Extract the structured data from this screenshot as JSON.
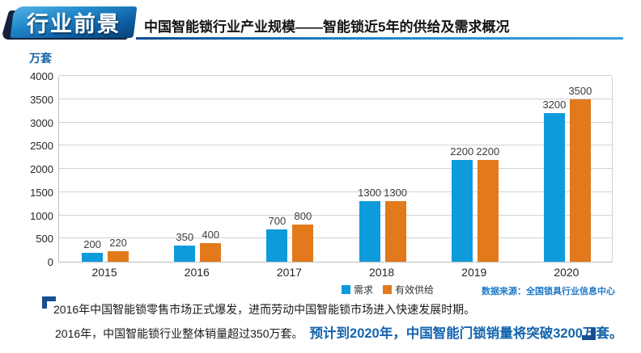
{
  "banner": {
    "label": "行业前景"
  },
  "header": {
    "title": "中国智能锁行业产业规模——智能锁近5年的供给及需求概况"
  },
  "chart": {
    "unit_label": "万套",
    "source": "数据来源：全国锁具行业信息中心",
    "legend": [
      {
        "label": "需求",
        "color": "#0E9BDB"
      },
      {
        "label": "有效供给",
        "color": "#E2791B"
      }
    ]
  },
  "chart_data": {
    "type": "bar",
    "categories": [
      "2015",
      "2016",
      "2017",
      "2018",
      "2019",
      "2020"
    ],
    "series": [
      {
        "name": "需求",
        "color": "#0E9BDB",
        "values": [
          200,
          350,
          700,
          1300,
          2200,
          3200
        ]
      },
      {
        "name": "有效供给",
        "color": "#E2791B",
        "values": [
          220,
          400,
          800,
          1300,
          2200,
          3500
        ]
      }
    ],
    "title": "中国智能锁行业产业规模——智能锁近5年的供给及需求概况",
    "xlabel": "",
    "ylabel": "万套",
    "ylim": [
      0,
      4000
    ],
    "ytick_step": 500,
    "grid": true,
    "legend_position": "bottom"
  },
  "footnote": {
    "line1": "2016年中国智能锁零售市场正式爆发，进而劳动中国智能锁市场进入快速发展时期。",
    "line2_black": "2016年，中国智能锁行业整体销量超过350万套。",
    "line2_blue": "预计到2020年，中国智能门锁销量将突破3200万套。"
  },
  "colors": {
    "demand_bar": "#0E9BDB",
    "supply_bar": "#E2791B",
    "banner_navy": "#13233E",
    "banner_blue": "#0D5CA2",
    "accent_blue_text": "#1565AD",
    "source_blue": "#1E7AC8",
    "gridline": "#D2D2D2"
  }
}
